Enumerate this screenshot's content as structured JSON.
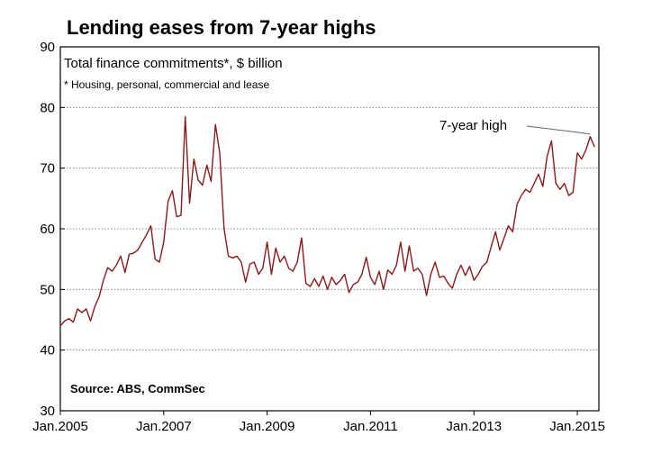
{
  "chart_data": {
    "type": "line",
    "title": "Lending eases from 7-year highs",
    "subtitle": "Total finance commitments*, $ billion",
    "note": "* Housing, personal, commercial and lease",
    "source": "Source: ABS, CommSec",
    "annotation": "7-year high",
    "ylim": [
      30,
      90
    ],
    "yticks": [
      30,
      40,
      50,
      60,
      70,
      80,
      90
    ],
    "xlim": [
      "2005-01",
      "2015-06"
    ],
    "xticks": [
      {
        "date": "2005-01",
        "label": "Jan.2005"
      },
      {
        "date": "2007-01",
        "label": "Jan.2007"
      },
      {
        "date": "2009-01",
        "label": "Jan.2009"
      },
      {
        "date": "2011-01",
        "label": "Jan.2011"
      },
      {
        "date": "2013-01",
        "label": "Jan.2013"
      },
      {
        "date": "2015-01",
        "label": "Jan.2015"
      }
    ],
    "grid": true,
    "line_color": "#8b1a1a",
    "series": [
      {
        "x": [
          "2005-01",
          "2005-02",
          "2005-03",
          "2005-04",
          "2005-05",
          "2005-06",
          "2005-07",
          "2005-08",
          "2005-09",
          "2005-10",
          "2005-11",
          "2005-12",
          "2006-01",
          "2006-02",
          "2006-03",
          "2006-04",
          "2006-05",
          "2006-06",
          "2006-07",
          "2006-08",
          "2006-09",
          "2006-10",
          "2006-11",
          "2006-12",
          "2007-01",
          "2007-02",
          "2007-03",
          "2007-04",
          "2007-05",
          "2007-06",
          "2007-07",
          "2007-08",
          "2007-09",
          "2007-10",
          "2007-11",
          "2007-12",
          "2008-01",
          "2008-02",
          "2008-03",
          "2008-04",
          "2008-05",
          "2008-06",
          "2008-07",
          "2008-08",
          "2008-09",
          "2008-10",
          "2008-11",
          "2008-12",
          "2009-01",
          "2009-02",
          "2009-03",
          "2009-04",
          "2009-05",
          "2009-06",
          "2009-07",
          "2009-08",
          "2009-09",
          "2009-10",
          "2009-11",
          "2009-12",
          "2010-01",
          "2010-02",
          "2010-03",
          "2010-04",
          "2010-05",
          "2010-06",
          "2010-07",
          "2010-08",
          "2010-09",
          "2010-10",
          "2010-11",
          "2010-12",
          "2011-01",
          "2011-02",
          "2011-03",
          "2011-04",
          "2011-05",
          "2011-06",
          "2011-07",
          "2011-08",
          "2011-09",
          "2011-10",
          "2011-11",
          "2011-12",
          "2012-01",
          "2012-02",
          "2012-03",
          "2012-04",
          "2012-05",
          "2012-06",
          "2012-07",
          "2012-08",
          "2012-09",
          "2012-10",
          "2012-11",
          "2012-12",
          "2013-01",
          "2013-02",
          "2013-03",
          "2013-04",
          "2013-05",
          "2013-06",
          "2013-07",
          "2013-08",
          "2013-09",
          "2013-10",
          "2013-11",
          "2013-12",
          "2014-01",
          "2014-02",
          "2014-03",
          "2014-04",
          "2014-05",
          "2014-06",
          "2014-07",
          "2014-08",
          "2014-09",
          "2014-10",
          "2014-11",
          "2014-12",
          "2015-01",
          "2015-02",
          "2015-03",
          "2015-04",
          "2015-05"
        ],
        "values": [
          44.0,
          44.8,
          45.2,
          44.6,
          46.8,
          46.2,
          46.8,
          44.8,
          47.2,
          48.8,
          51.5,
          53.6,
          53.0,
          54.0,
          55.5,
          52.8,
          55.8,
          56.0,
          56.5,
          57.8,
          59.0,
          60.5,
          55.0,
          54.5,
          57.8,
          64.5,
          66.3,
          62.0,
          62.2,
          78.5,
          64.2,
          71.5,
          68.0,
          67.2,
          70.5,
          67.8,
          77.2,
          72.5,
          60.0,
          55.5,
          55.2,
          55.5,
          54.5,
          51.2,
          54.2,
          54.5,
          52.5,
          53.5,
          57.8,
          52.5,
          56.8,
          54.5,
          55.5,
          53.5,
          53.0,
          54.5,
          58.5,
          51.0,
          50.5,
          51.8,
          50.5,
          52.2,
          50.0,
          52.0,
          50.8,
          51.5,
          52.5,
          49.5,
          50.8,
          51.2,
          52.5,
          55.3,
          52.0,
          50.8,
          53.0,
          50.0,
          53.2,
          52.5,
          54.0,
          57.8,
          53.0,
          57.2,
          53.0,
          53.5,
          52.5,
          49.0,
          52.5,
          54.5,
          52.0,
          52.2,
          51.0,
          50.2,
          52.5,
          54.0,
          52.3,
          53.8,
          51.5,
          52.5,
          53.8,
          54.5,
          57.0,
          59.5,
          56.5,
          58.5,
          60.5,
          59.5,
          64.0,
          65.5,
          66.5,
          66.0,
          67.5,
          69.0,
          67.0,
          72.0,
          74.5,
          67.5,
          66.5,
          67.5,
          65.5,
          66.0,
          72.5,
          71.5,
          73.0,
          75.2,
          73.5
        ]
      }
    ]
  }
}
